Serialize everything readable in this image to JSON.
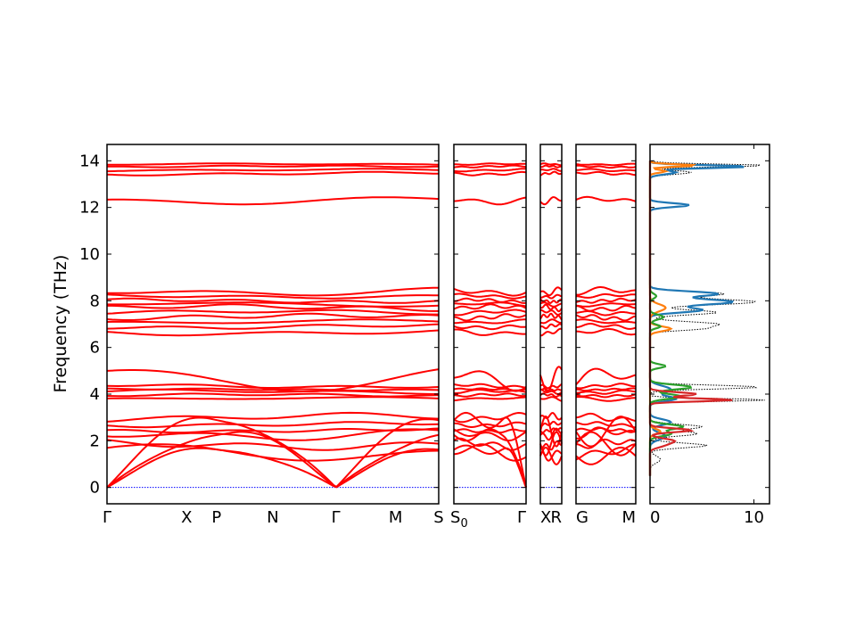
{
  "chart_data": {
    "type": "line",
    "title": "",
    "ylabel": "Frequency (THz)",
    "ylim": [
      -0.7,
      14.7
    ],
    "yticks": [
      0,
      2,
      4,
      6,
      8,
      10,
      12,
      14
    ],
    "grid": false,
    "band_color": "#ff0000",
    "zero_line_color": "#0000ff",
    "panels": [
      {
        "name": "band-panel-1",
        "xlabels": [
          "Γ",
          "X",
          "P",
          "N",
          "Γ",
          "M",
          "S"
        ],
        "xpos": [
          0,
          0.24,
          0.33,
          0.5,
          0.69,
          0.87,
          1.0
        ]
      },
      {
        "name": "band-panel-2",
        "xlabels": [
          "S0",
          "Γ"
        ],
        "xpos": [
          0,
          1.0
        ]
      },
      {
        "name": "band-panel-3",
        "xlabels": [
          "X",
          "R"
        ],
        "xpos": [
          0,
          1.0
        ]
      },
      {
        "name": "band-panel-4",
        "xlabels": [
          "G",
          "M"
        ],
        "xpos": [
          0,
          1.0
        ]
      }
    ],
    "acoustic_max": [
      3.2,
      2.5,
      1.8
    ],
    "optical_bands": [
      {
        "base": 1.5,
        "amp": 0.4,
        "freq": 1.3
      },
      {
        "base": 1.85,
        "amp": 0.25,
        "freq": 2.1
      },
      {
        "base": 2.3,
        "amp": 0.3,
        "freq": 1.7
      },
      {
        "base": 2.45,
        "amp": 0.1,
        "freq": 3.0
      },
      {
        "base": 2.7,
        "amp": 0.12,
        "freq": 2.4
      },
      {
        "base": 3.0,
        "amp": 0.2,
        "freq": 1.9
      },
      {
        "base": 3.8,
        "amp": 0.1,
        "freq": 1.2
      },
      {
        "base": 3.95,
        "amp": 0.08,
        "freq": 2.6
      },
      {
        "base": 4.1,
        "amp": 0.1,
        "freq": 1.8
      },
      {
        "base": 4.2,
        "amp": 0.05,
        "freq": 3.2
      },
      {
        "base": 4.35,
        "amp": 0.1,
        "freq": 2.2
      },
      {
        "base": 4.7,
        "amp": 0.6,
        "freq": 1.1
      },
      {
        "base": 6.65,
        "amp": 0.15,
        "freq": 1.6
      },
      {
        "base": 6.9,
        "amp": 0.12,
        "freq": 2.3
      },
      {
        "base": 7.1,
        "amp": 0.1,
        "freq": 1.4
      },
      {
        "base": 7.3,
        "amp": 0.15,
        "freq": 2.8
      },
      {
        "base": 7.5,
        "amp": 0.12,
        "freq": 1.9
      },
      {
        "base": 7.7,
        "amp": 0.15,
        "freq": 2.5
      },
      {
        "base": 7.85,
        "amp": 0.1,
        "freq": 1.3
      },
      {
        "base": 8.0,
        "amp": 0.1,
        "freq": 3.1
      },
      {
        "base": 8.2,
        "amp": 0.1,
        "freq": 2.0
      },
      {
        "base": 8.4,
        "amp": 0.2,
        "freq": 1.5
      },
      {
        "base": 12.3,
        "amp": 0.18,
        "freq": 1.4
      },
      {
        "base": 13.45,
        "amp": 0.08,
        "freq": 2.2
      },
      {
        "base": 13.6,
        "amp": 0.06,
        "freq": 1.7
      },
      {
        "base": 13.75,
        "amp": 0.05,
        "freq": 2.8
      },
      {
        "base": 13.85,
        "amp": 0.04,
        "freq": 1.9
      }
    ],
    "dos": {
      "xlim": [
        0,
        11.5
      ],
      "xticks": [
        0,
        10
      ],
      "series": [
        {
          "color": "#1f77b4",
          "peaks": [
            [
              13.75,
              9.5,
              0.06
            ],
            [
              13.5,
              2.5,
              0.08
            ],
            [
              12.1,
              3.8,
              0.08
            ],
            [
              8.3,
              6.5,
              0.1
            ],
            [
              7.95,
              8.0,
              0.12
            ],
            [
              7.6,
              5.0,
              0.1
            ],
            [
              4.2,
              2.0,
              0.15
            ],
            [
              3.8,
              2.5,
              0.1
            ],
            [
              2.8,
              2.0,
              0.12
            ],
            [
              2.2,
              1.5,
              0.15
            ]
          ]
        },
        {
          "color": "#ff7f0e",
          "peaks": [
            [
              13.8,
              4.5,
              0.05
            ],
            [
              13.55,
              1.5,
              0.06
            ],
            [
              7.7,
              1.5,
              0.15
            ],
            [
              6.8,
              2.0,
              0.1
            ],
            [
              2.4,
              1.0,
              0.1
            ]
          ]
        },
        {
          "color": "#2ca02c",
          "peaks": [
            [
              8.2,
              0.6,
              0.1
            ],
            [
              7.3,
              1.3,
              0.1
            ],
            [
              6.9,
              1.0,
              0.08
            ],
            [
              5.2,
              1.5,
              0.08
            ],
            [
              4.3,
              4.0,
              0.1
            ],
            [
              3.9,
              3.0,
              0.1
            ],
            [
              2.6,
              3.2,
              0.1
            ],
            [
              2.3,
              2.0,
              0.1
            ]
          ]
        },
        {
          "color": "#d62728",
          "peaks": [
            [
              4.0,
              4.5,
              0.08
            ],
            [
              3.75,
              8.0,
              0.06
            ],
            [
              2.45,
              4.0,
              0.08
            ],
            [
              2.0,
              2.2,
              0.1
            ],
            [
              1.8,
              1.2,
              0.1
            ]
          ]
        }
      ],
      "total": {
        "color": "#000000",
        "peaks": [
          [
            13.8,
            11.2,
            0.06
          ],
          [
            13.5,
            4.0,
            0.08
          ],
          [
            12.1,
            3.8,
            0.08
          ],
          [
            8.3,
            7.0,
            0.1
          ],
          [
            7.95,
            10.2,
            0.12
          ],
          [
            7.5,
            6.5,
            0.1
          ],
          [
            7.0,
            6.5,
            0.1
          ],
          [
            6.8,
            4.5,
            0.08
          ],
          [
            4.3,
            10.5,
            0.08
          ],
          [
            3.75,
            11.2,
            0.06
          ],
          [
            2.6,
            5.0,
            0.1
          ],
          [
            2.3,
            4.5,
            0.1
          ],
          [
            1.8,
            5.5,
            0.1
          ],
          [
            1.2,
            1.0,
            0.15
          ]
        ]
      }
    }
  }
}
